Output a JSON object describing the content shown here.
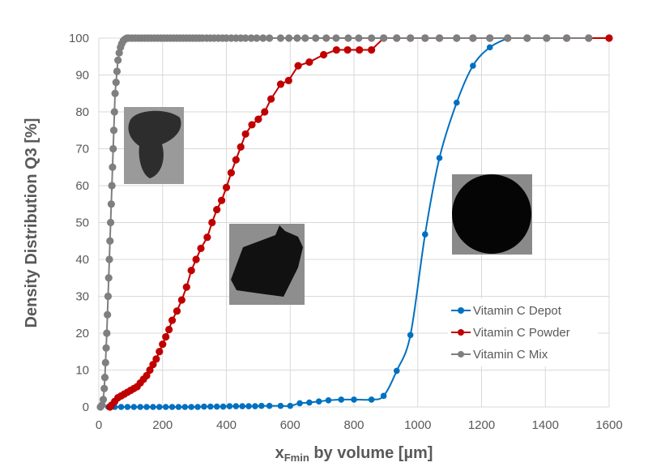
{
  "chart_data": {
    "type": "line",
    "title": "",
    "xlabel_main": "x",
    "xlabel_sub": "Fmin",
    "xlabel_rest": " by volume [µm]",
    "ylabel": "Density Distribution Q3 [%]",
    "xlim": [
      0,
      1600
    ],
    "ylim": [
      0,
      100
    ],
    "xticks": [
      0,
      200,
      400,
      600,
      800,
      1000,
      1200,
      1400,
      1600
    ],
    "yticks": [
      0,
      10,
      20,
      30,
      40,
      50,
      60,
      70,
      80,
      90,
      100
    ],
    "grid": true,
    "legend_position": "bottom-right",
    "series": [
      {
        "name": "Vitamin C Depot",
        "color": "#0070C0",
        "smooth": true,
        "points": [
          [
            30,
            0
          ],
          [
            50,
            0
          ],
          [
            70,
            0
          ],
          [
            90,
            0
          ],
          [
            110,
            0
          ],
          [
            130,
            0
          ],
          [
            150,
            0
          ],
          [
            170,
            0
          ],
          [
            190,
            0
          ],
          [
            210,
            0
          ],
          [
            230,
            0
          ],
          [
            250,
            0
          ],
          [
            270,
            0
          ],
          [
            290,
            0
          ],
          [
            310,
            0
          ],
          [
            330,
            0.1
          ],
          [
            350,
            0.1
          ],
          [
            370,
            0.1
          ],
          [
            390,
            0.1
          ],
          [
            410,
            0.2
          ],
          [
            430,
            0.2
          ],
          [
            450,
            0.2
          ],
          [
            470,
            0.2
          ],
          [
            490,
            0.2
          ],
          [
            510,
            0.3
          ],
          [
            535,
            0.3
          ],
          [
            570,
            0.3
          ],
          [
            600,
            0.3
          ],
          [
            630,
            1
          ],
          [
            660,
            1.2
          ],
          [
            690,
            1.5
          ],
          [
            720,
            1.8
          ],
          [
            760,
            2
          ],
          [
            800,
            2
          ],
          [
            855,
            2
          ],
          [
            893,
            3
          ],
          [
            934,
            9.8
          ],
          [
            977,
            19.5
          ],
          [
            1023,
            46.8
          ],
          [
            1068,
            67.5
          ],
          [
            1122,
            82.5
          ],
          [
            1173,
            92.5
          ],
          [
            1226,
            97.5
          ],
          [
            1282,
            100
          ]
        ]
      },
      {
        "name": "Vitamin C Powder",
        "color": "#C00000",
        "smooth": false,
        "points": [
          [
            35,
            0
          ],
          [
            40,
            0.5
          ],
          [
            50,
            1.5
          ],
          [
            60,
            2.5
          ],
          [
            70,
            3
          ],
          [
            80,
            3.5
          ],
          [
            90,
            4
          ],
          [
            100,
            4.5
          ],
          [
            110,
            5
          ],
          [
            120,
            5.5
          ],
          [
            130,
            6.5
          ],
          [
            140,
            7.5
          ],
          [
            150,
            8.5
          ],
          [
            160,
            10
          ],
          [
            170,
            11.5
          ],
          [
            180,
            13
          ],
          [
            190,
            15
          ],
          [
            200,
            17
          ],
          [
            210,
            19
          ],
          [
            220,
            21
          ],
          [
            230,
            23.5
          ],
          [
            245,
            26
          ],
          [
            260,
            29
          ],
          [
            275,
            32.5
          ],
          [
            290,
            37
          ],
          [
            305,
            40
          ],
          [
            320,
            43
          ],
          [
            340,
            46
          ],
          [
            355,
            50
          ],
          [
            370,
            53.5
          ],
          [
            385,
            56
          ],
          [
            400,
            59.5
          ],
          [
            415,
            63.5
          ],
          [
            430,
            67
          ],
          [
            445,
            70.5
          ],
          [
            460,
            74
          ],
          [
            480,
            76.5
          ],
          [
            500,
            78
          ],
          [
            520,
            80
          ],
          [
            540,
            83.5
          ],
          [
            570,
            87.5
          ],
          [
            595,
            88.5
          ],
          [
            625,
            92.5
          ],
          [
            660,
            93.5
          ],
          [
            705,
            95.5
          ],
          [
            745,
            96.8
          ],
          [
            780,
            96.8
          ],
          [
            817,
            96.8
          ],
          [
            855,
            96.8
          ],
          [
            893,
            100
          ],
          [
            934,
            100
          ],
          [
            977,
            100
          ],
          [
            1023,
            100
          ],
          [
            1068,
            100
          ],
          [
            1122,
            100
          ],
          [
            1173,
            100
          ],
          [
            1226,
            100
          ],
          [
            1282,
            100
          ],
          [
            1343,
            100
          ],
          [
            1404,
            100
          ],
          [
            1467,
            100
          ],
          [
            1536,
            100
          ],
          [
            1600,
            100
          ]
        ]
      },
      {
        "name": "Vitamin C Mix",
        "color": "#7F7F7F",
        "smooth": false,
        "points": [
          [
            5,
            0
          ],
          [
            10,
            0.5
          ],
          [
            14,
            2
          ],
          [
            17,
            5
          ],
          [
            19,
            8
          ],
          [
            21,
            12
          ],
          [
            23,
            16
          ],
          [
            25,
            20
          ],
          [
            27,
            25
          ],
          [
            29,
            30
          ],
          [
            31,
            35
          ],
          [
            33,
            40
          ],
          [
            35,
            45
          ],
          [
            37,
            50
          ],
          [
            39,
            55
          ],
          [
            41,
            60
          ],
          [
            43,
            65
          ],
          [
            45,
            70
          ],
          [
            47,
            75
          ],
          [
            49,
            80
          ],
          [
            51,
            85
          ],
          [
            54,
            88
          ],
          [
            57,
            91
          ],
          [
            60,
            94
          ],
          [
            64,
            96
          ],
          [
            68,
            97.5
          ],
          [
            72,
            98.5
          ],
          [
            77,
            99.3
          ],
          [
            82,
            99.7
          ],
          [
            88,
            100
          ],
          [
            95,
            100
          ],
          [
            105,
            100
          ],
          [
            115,
            100
          ],
          [
            125,
            100
          ],
          [
            135,
            100
          ],
          [
            145,
            100
          ],
          [
            155,
            100
          ],
          [
            165,
            100
          ],
          [
            175,
            100
          ],
          [
            185,
            100
          ],
          [
            195,
            100
          ],
          [
            205,
            100
          ],
          [
            215,
            100
          ],
          [
            225,
            100
          ],
          [
            235,
            100
          ],
          [
            245,
            100
          ],
          [
            255,
            100
          ],
          [
            265,
            100
          ],
          [
            275,
            100
          ],
          [
            285,
            100
          ],
          [
            295,
            100
          ],
          [
            305,
            100
          ],
          [
            315,
            100
          ],
          [
            325,
            100
          ],
          [
            338,
            100
          ],
          [
            350,
            100
          ],
          [
            362,
            100
          ],
          [
            375,
            100
          ],
          [
            388,
            100
          ],
          [
            400,
            100
          ],
          [
            415,
            100
          ],
          [
            430,
            100
          ],
          [
            445,
            100
          ],
          [
            460,
            100
          ],
          [
            478,
            100
          ],
          [
            495,
            100
          ],
          [
            515,
            100
          ],
          [
            535,
            100
          ],
          [
            570,
            100
          ],
          [
            596,
            100
          ],
          [
            622,
            100
          ],
          [
            647,
            100
          ],
          [
            680,
            100
          ],
          [
            713,
            100
          ],
          [
            744,
            100
          ],
          [
            782,
            100
          ],
          [
            815,
            100
          ],
          [
            855,
            100
          ],
          [
            893,
            100
          ],
          [
            934,
            100
          ],
          [
            977,
            100
          ],
          [
            1023,
            100
          ],
          [
            1068,
            100
          ],
          [
            1122,
            100
          ],
          [
            1173,
            100
          ],
          [
            1226,
            100
          ],
          [
            1282,
            100
          ],
          [
            1343,
            100
          ],
          [
            1404,
            100
          ],
          [
            1467,
            100
          ],
          [
            1536,
            100
          ]
        ]
      }
    ]
  }
}
